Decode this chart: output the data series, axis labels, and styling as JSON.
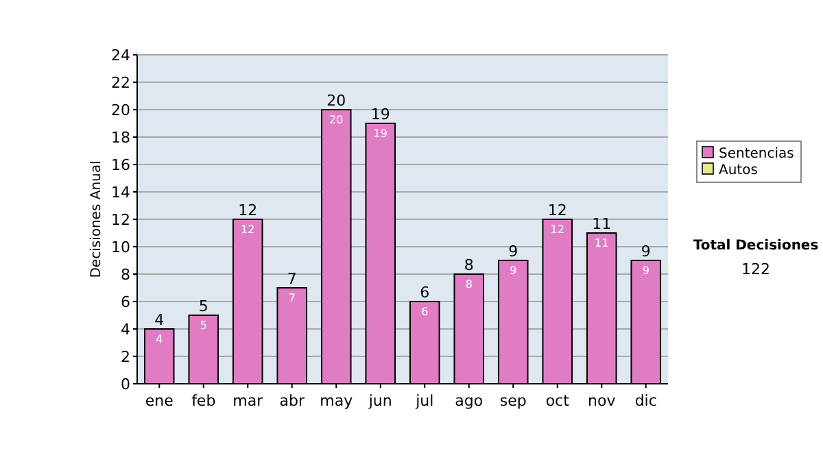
{
  "chart_data": {
    "type": "bar",
    "ylabel": "Decisiones Anual",
    "categories": [
      "ene",
      "feb",
      "mar",
      "abr",
      "may",
      "jun",
      "jul",
      "ago",
      "sep",
      "oct",
      "nov",
      "dic"
    ],
    "stacked": true,
    "series": [
      {
        "name": "Sentencias",
        "color": "#e07cc4",
        "values": [
          4,
          5,
          12,
          7,
          20,
          19,
          6,
          8,
          9,
          12,
          11,
          9
        ],
        "value_labels": [
          "4",
          "5",
          "12",
          "7",
          "20",
          "19",
          "6",
          "8",
          "9",
          "12",
          "11",
          "9"
        ]
      },
      {
        "name": "Autos",
        "color": "#e8e88c",
        "values": [
          0,
          0,
          0,
          0,
          0,
          0,
          0,
          0,
          0,
          0,
          0,
          0
        ]
      }
    ],
    "totals": [
      "4",
      "5",
      "12",
      "7",
      "20",
      "19",
      "6",
      "8",
      "9",
      "12",
      "11",
      "9"
    ],
    "ylim": [
      0,
      24
    ],
    "yticks": [
      0,
      2,
      4,
      6,
      8,
      10,
      12,
      14,
      16,
      18,
      20,
      22,
      24
    ],
    "grid": "y",
    "legend": "right",
    "annotations": [
      "Total Decisiones",
      "122"
    ]
  }
}
